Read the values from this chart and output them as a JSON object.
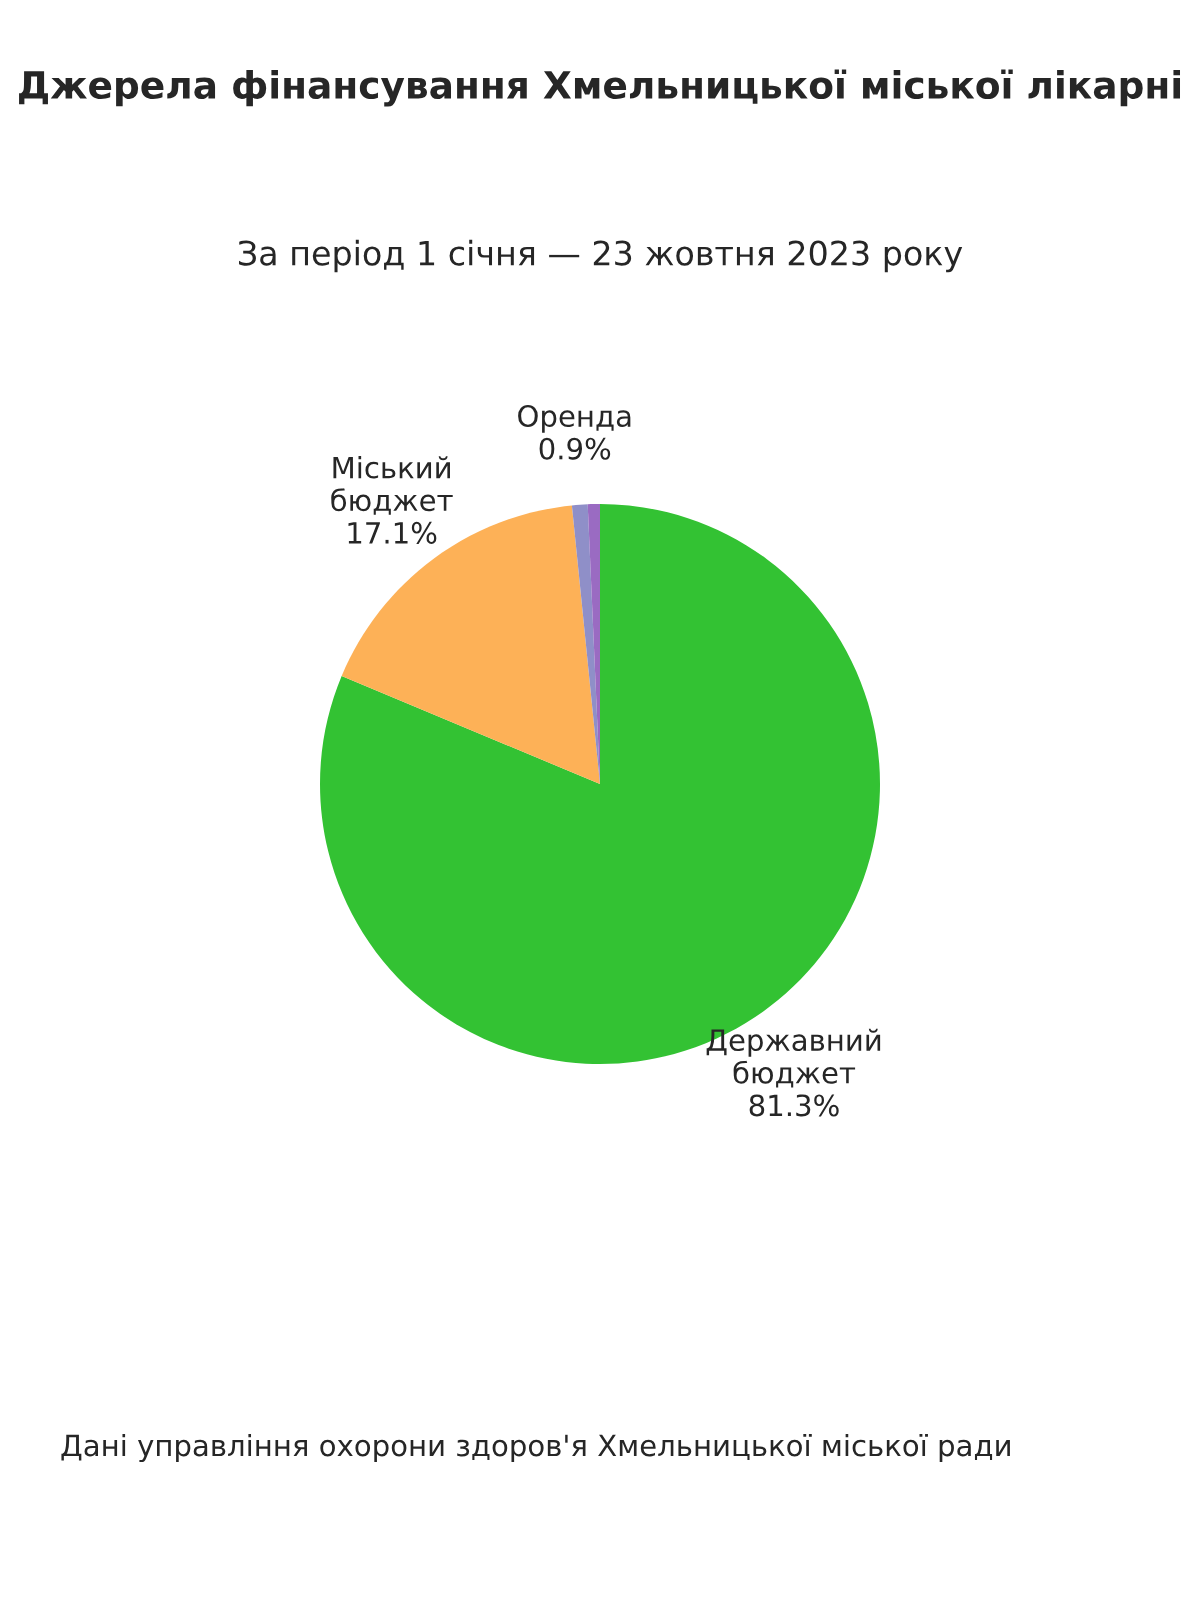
{
  "chart_data": {
    "type": "pie",
    "title": "Джерела фінансування Хмельницької міської лікарні",
    "subtitle": "За період 1 січня — 23 жовтня 2023 року",
    "categories": [
      "Державний бюджет",
      "Міський бюджет",
      "Оренда",
      null
    ],
    "values": [
      81.3,
      17.1,
      0.9,
      0.7
    ],
    "colors": [
      "#33c233",
      "#fdb157",
      "#8f8fc8",
      "#9a6bc2"
    ],
    "value_labels": [
      "81.3%",
      "17.1%",
      "0.9%",
      null
    ],
    "annotations": [
      "Дані управління охорони здоров'я Хмельницької міської ради"
    ]
  }
}
